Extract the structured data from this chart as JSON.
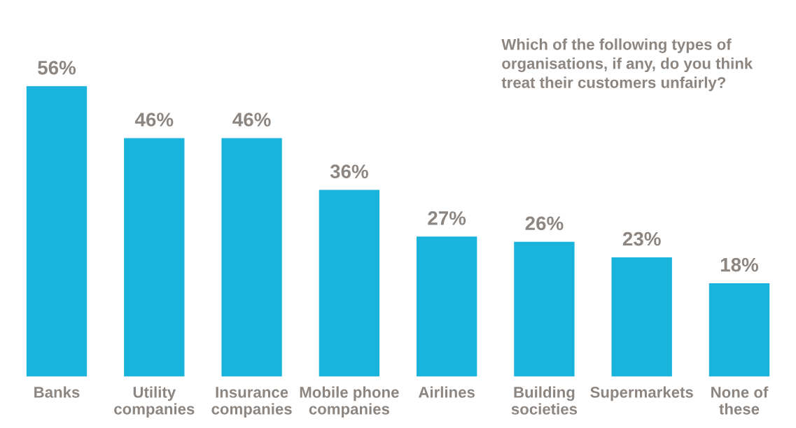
{
  "chart_data": {
    "type": "bar",
    "title": "Which of the following types of\norganisations, if any, do you think\ntreat their customers unfairly?",
    "categories": [
      "Banks",
      "Utility\ncompanies",
      "Insurance\ncompanies",
      "Mobile phone\ncompanies",
      "Airlines",
      "Building\nsocieties",
      "Supermarkets",
      "None of\nthese"
    ],
    "values": [
      56,
      46,
      46,
      36,
      27,
      26,
      23,
      18
    ],
    "value_labels": [
      "56%",
      "46%",
      "46%",
      "36%",
      "27%",
      "26%",
      "23%",
      "18%"
    ],
    "color": "#1ab3dc",
    "tick_labels": "x",
    "grid": false,
    "legend": false
  }
}
